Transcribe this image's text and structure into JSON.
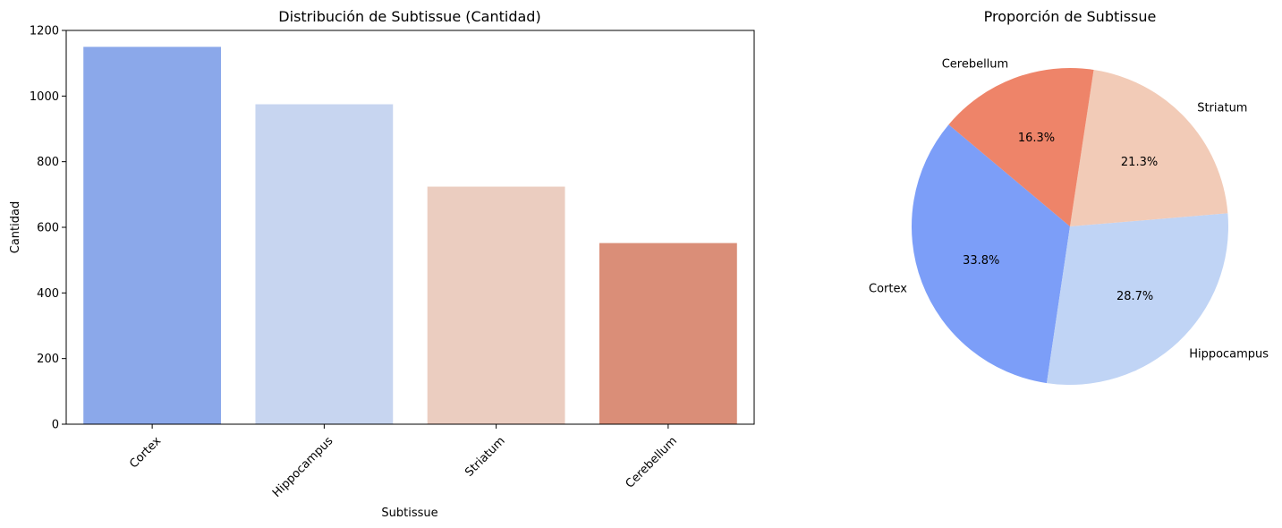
{
  "chart_data": [
    {
      "type": "bar",
      "title": "Distribución de Subtissue (Cantidad)",
      "xlabel": "Subtissue",
      "ylabel": "Cantidad",
      "categories": [
        "Cortex",
        "Hippocampus",
        "Striatum",
        "Cerebellum"
      ],
      "values": [
        1150,
        975,
        724,
        552
      ],
      "colors": [
        "#8ba8ea",
        "#c7d5f0",
        "#ebcdc0",
        "#da8e78"
      ],
      "ylim": [
        0,
        1200
      ],
      "yticks": [
        0,
        200,
        400,
        600,
        800,
        1000,
        1200
      ],
      "xtick_rotation": 45,
      "grid": false
    },
    {
      "type": "pie",
      "title": "Proporción de Subtissue",
      "labels": [
        "Cortex",
        "Hippocampus",
        "Striatum",
        "Cerebellum"
      ],
      "values": [
        33.8,
        28.7,
        21.3,
        16.3
      ],
      "pct_labels": [
        "33.8%",
        "28.7%",
        "21.3%",
        "16.3%"
      ],
      "colors": [
        "#7c9ef8",
        "#c0d4f5",
        "#f2cbb7",
        "#ee8469"
      ],
      "start_angle": 140,
      "direction": "counterclockwise"
    }
  ]
}
